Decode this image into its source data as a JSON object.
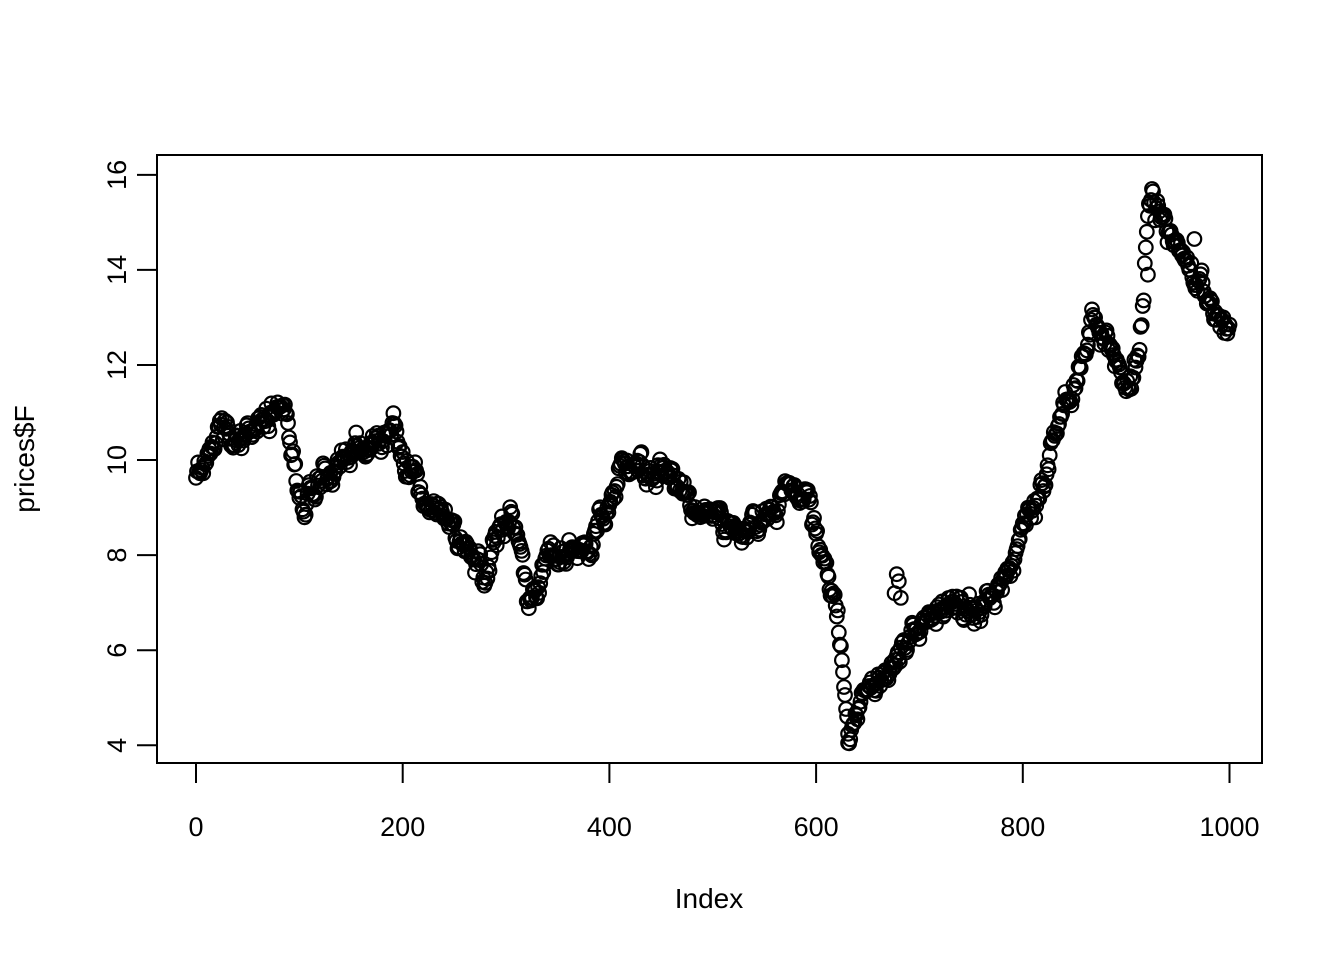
{
  "figure": {
    "background_color": "#ffffff",
    "foreground_color": "#000000",
    "marker": {
      "shape": "open-circle",
      "color": "#000000"
    }
  },
  "chart_data": {
    "type": "scatter",
    "title": "",
    "xlabel": "Index",
    "ylabel": "prices$F",
    "x_ticks": [
      0,
      200,
      400,
      600,
      800,
      1000
    ],
    "y_ticks": [
      4,
      6,
      8,
      10,
      12,
      14,
      16
    ],
    "xlim": [
      -40,
      1040
    ],
    "ylim": [
      3.6,
      16.4
    ],
    "n_points": 1001,
    "grid": "off",
    "legend": "none",
    "series_summary": "random-walk style price series; min ~4.0 at index ~630, max ~16.0 at index ~925, start ~9.7, end ~12.8",
    "anchors": [
      [
        0,
        9.7
      ],
      [
        5,
        9.85
      ],
      [
        10,
        10.05
      ],
      [
        15,
        10.3
      ],
      [
        20,
        10.45
      ],
      [
        25,
        10.5
      ],
      [
        30,
        10.5
      ],
      [
        35,
        10.45
      ],
      [
        40,
        10.55
      ],
      [
        45,
        10.5
      ],
      [
        50,
        10.6
      ],
      [
        55,
        10.55
      ],
      [
        60,
        10.7
      ],
      [
        65,
        10.85
      ],
      [
        70,
        10.95
      ],
      [
        75,
        11.1
      ],
      [
        80,
        11.3
      ],
      [
        85,
        11.2
      ],
      [
        88,
        10.9
      ],
      [
        92,
        10.3
      ],
      [
        96,
        9.8
      ],
      [
        100,
        9.35
      ],
      [
        105,
        9.15
      ],
      [
        110,
        9.3
      ],
      [
        115,
        9.4
      ],
      [
        120,
        9.45
      ],
      [
        125,
        9.5
      ],
      [
        130,
        9.6
      ],
      [
        135,
        9.75
      ],
      [
        140,
        9.9
      ],
      [
        145,
        10.0
      ],
      [
        150,
        9.9
      ],
      [
        155,
        10.25
      ],
      [
        160,
        10.1
      ],
      [
        165,
        10.0
      ],
      [
        170,
        10.2
      ],
      [
        175,
        10.4
      ],
      [
        180,
        10.5
      ],
      [
        185,
        10.65
      ],
      [
        190,
        10.8
      ],
      [
        195,
        10.55
      ],
      [
        200,
        10.1
      ],
      [
        205,
        9.85
      ],
      [
        210,
        9.9
      ],
      [
        215,
        9.55
      ],
      [
        220,
        9.25
      ],
      [
        225,
        9.0
      ],
      [
        230,
        8.85
      ],
      [
        235,
        8.9
      ],
      [
        240,
        8.8
      ],
      [
        245,
        8.65
      ],
      [
        250,
        8.6
      ],
      [
        255,
        8.45
      ],
      [
        260,
        8.2
      ],
      [
        265,
        8.0
      ],
      [
        270,
        7.85
      ],
      [
        275,
        7.8
      ],
      [
        280,
        7.6
      ],
      [
        285,
        8.1
      ],
      [
        290,
        8.5
      ],
      [
        295,
        8.7
      ],
      [
        300,
        8.8
      ],
      [
        305,
        8.85
      ],
      [
        310,
        8.4
      ],
      [
        315,
        7.9
      ],
      [
        320,
        7.3
      ],
      [
        325,
        7.1
      ],
      [
        330,
        7.15
      ],
      [
        335,
        7.75
      ],
      [
        340,
        8.1
      ],
      [
        345,
        8.05
      ],
      [
        350,
        7.95
      ],
      [
        355,
        7.9
      ],
      [
        360,
        8.1
      ],
      [
        365,
        8.15
      ],
      [
        370,
        8.0
      ],
      [
        375,
        8.05
      ],
      [
        380,
        8.2
      ],
      [
        385,
        8.45
      ],
      [
        390,
        8.8
      ],
      [
        395,
        9.0
      ],
      [
        400,
        9.15
      ],
      [
        405,
        9.5
      ],
      [
        410,
        9.8
      ],
      [
        415,
        9.9
      ],
      [
        420,
        9.9
      ],
      [
        425,
        9.75
      ],
      [
        430,
        9.65
      ],
      [
        435,
        9.55
      ],
      [
        440,
        9.5
      ],
      [
        445,
        9.7
      ],
      [
        450,
        9.9
      ],
      [
        455,
        9.85
      ],
      [
        460,
        9.65
      ],
      [
        465,
        9.55
      ],
      [
        470,
        9.6
      ],
      [
        475,
        9.3
      ],
      [
        480,
        9.05
      ],
      [
        485,
        8.85
      ],
      [
        490,
        9.15
      ],
      [
        495,
        8.9
      ],
      [
        500,
        8.85
      ],
      [
        505,
        9.0
      ],
      [
        510,
        8.7
      ],
      [
        515,
        8.55
      ],
      [
        520,
        8.4
      ],
      [
        525,
        8.6
      ],
      [
        530,
        8.45
      ],
      [
        535,
        8.6
      ],
      [
        540,
        8.75
      ],
      [
        545,
        8.7
      ],
      [
        550,
        8.9
      ],
      [
        555,
        9.05
      ],
      [
        560,
        8.9
      ],
      [
        565,
        9.15
      ],
      [
        570,
        9.3
      ],
      [
        575,
        9.4
      ],
      [
        580,
        9.3
      ],
      [
        585,
        9.25
      ],
      [
        590,
        9.1
      ],
      [
        594,
        8.8
      ],
      [
        598,
        8.5
      ],
      [
        602,
        8.2
      ],
      [
        606,
        8.0
      ],
      [
        610,
        7.7
      ],
      [
        614,
        7.3
      ],
      [
        618,
        6.9
      ],
      [
        622,
        6.3
      ],
      [
        625,
        5.7
      ],
      [
        628,
        5.1
      ],
      [
        631,
        4.6
      ],
      [
        634,
        4.35
      ],
      [
        638,
        4.5
      ],
      [
        642,
        4.8
      ],
      [
        646,
        5.05
      ],
      [
        650,
        5.2
      ],
      [
        655,
        5.1
      ],
      [
        660,
        5.25
      ],
      [
        665,
        5.4
      ],
      [
        670,
        5.5
      ],
      [
        675,
        5.7
      ],
      [
        680,
        5.95
      ],
      [
        685,
        6.1
      ],
      [
        690,
        6.1
      ],
      [
        695,
        6.2
      ],
      [
        700,
        6.4
      ],
      [
        705,
        6.55
      ],
      [
        710,
        6.5
      ],
      [
        715,
        6.65
      ],
      [
        720,
        6.85
      ],
      [
        725,
        6.95
      ],
      [
        730,
        7.0
      ],
      [
        735,
        6.9
      ],
      [
        740,
        6.95
      ],
      [
        745,
        7.05
      ],
      [
        750,
        7.0
      ],
      [
        755,
        6.9
      ],
      [
        760,
        7.0
      ],
      [
        765,
        7.15
      ],
      [
        770,
        7.05
      ],
      [
        775,
        7.25
      ],
      [
        780,
        7.45
      ],
      [
        785,
        7.55
      ],
      [
        790,
        7.75
      ],
      [
        795,
        8.0
      ],
      [
        800,
        8.55
      ],
      [
        805,
        8.8
      ],
      [
        810,
        9.0
      ],
      [
        815,
        9.2
      ],
      [
        820,
        9.55
      ],
      [
        825,
        10.0
      ],
      [
        830,
        10.45
      ],
      [
        835,
        10.8
      ],
      [
        840,
        11.2
      ],
      [
        845,
        11.5
      ],
      [
        850,
        11.7
      ],
      [
        855,
        12.0
      ],
      [
        860,
        12.4
      ],
      [
        865,
        12.9
      ],
      [
        868,
        13.1
      ],
      [
        872,
        12.85
      ],
      [
        876,
        12.6
      ],
      [
        880,
        12.5
      ],
      [
        885,
        12.35
      ],
      [
        890,
        11.9
      ],
      [
        895,
        11.6
      ],
      [
        900,
        11.45
      ],
      [
        905,
        11.55
      ],
      [
        908,
        11.8
      ],
      [
        911,
        12.2
      ],
      [
        914,
        12.9
      ],
      [
        917,
        13.8
      ],
      [
        920,
        14.9
      ],
      [
        923,
        15.6
      ],
      [
        926,
        15.85
      ],
      [
        929,
        15.3
      ],
      [
        932,
        15.05
      ],
      [
        935,
        15.1
      ],
      [
        938,
        14.95
      ],
      [
        941,
        15.0
      ],
      [
        944,
        14.9
      ],
      [
        947,
        14.8
      ],
      [
        950,
        14.7
      ],
      [
        955,
        14.45
      ],
      [
        960,
        14.2
      ],
      [
        965,
        14.0
      ],
      [
        970,
        13.8
      ],
      [
        975,
        13.55
      ],
      [
        980,
        13.3
      ],
      [
        985,
        13.1
      ],
      [
        990,
        12.95
      ],
      [
        995,
        12.8
      ],
      [
        1000,
        12.75
      ]
    ],
    "outliers": [
      [
        676,
        7.2
      ],
      [
        678,
        7.6
      ],
      [
        680,
        7.45
      ],
      [
        682,
        7.1
      ],
      [
        631,
        4.05
      ],
      [
        966,
        14.65
      ],
      [
        921,
        13.9
      ]
    ],
    "noise": {
      "seed": 20,
      "ar": 0.68,
      "sd": 0.11,
      "micro_sd": 0.05,
      "clamp": [
        3.98,
        16.02
      ]
    }
  }
}
